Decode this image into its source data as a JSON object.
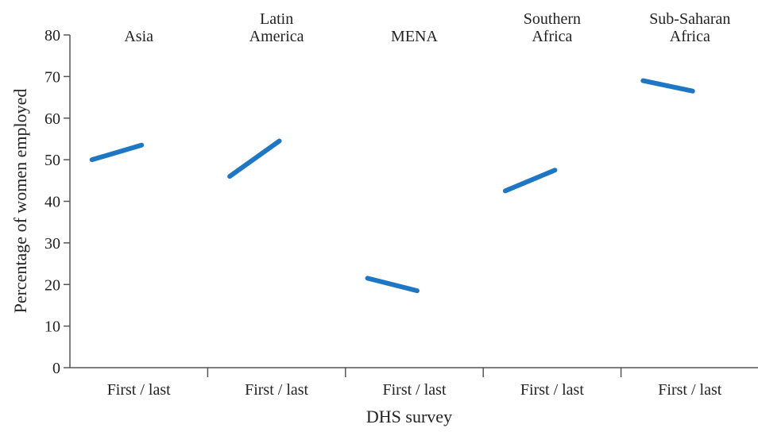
{
  "chart_data": {
    "type": "line",
    "title": "",
    "xlabel": "DHS survey",
    "ylabel": "Percentage of women employed",
    "ylim": [
      0,
      80
    ],
    "yticks": [
      0,
      10,
      20,
      30,
      40,
      50,
      60,
      70,
      80
    ],
    "grid": false,
    "legend": "none",
    "line_color": "#1f77c4",
    "panels": [
      {
        "label_lines": [
          "Asia"
        ],
        "category": "First / last",
        "first": 50,
        "last": 53.5
      },
      {
        "label_lines": [
          "Latin",
          "America"
        ],
        "category": "First / last",
        "first": 46,
        "last": 54.5
      },
      {
        "label_lines": [
          "MENA"
        ],
        "category": "First / last",
        "first": 21.5,
        "last": 18.5
      },
      {
        "label_lines": [
          "Southern",
          "Africa"
        ],
        "category": "First / last",
        "first": 42.5,
        "last": 47.5
      },
      {
        "label_lines": [
          "Sub-Saharan",
          "Africa"
        ],
        "category": "First / last",
        "first": 69,
        "last": 66.5
      }
    ]
  }
}
